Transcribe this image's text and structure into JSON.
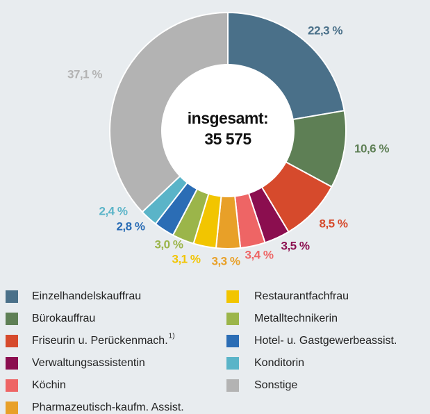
{
  "chart_data": {
    "type": "donut",
    "center_text": [
      "insgesamt:",
      "35 575"
    ],
    "categories": [
      "Einzelhandelskauffrau",
      "Bürokauffrau",
      "Friseurin u. Perückenmach.",
      "Verwaltungsassistentin",
      "Köchin",
      "Pharmazeutisch-kaufm. Assist.",
      "Restaurantfachfrau",
      "Metalltechnikerin",
      "Hotel- u. Gastgewerbeassist.",
      "Konditorin",
      "Sonstige"
    ],
    "footnote": {
      "category": 2,
      "mark": "1)"
    },
    "values": [
      22.3,
      10.6,
      8.5,
      3.5,
      3.4,
      3.3,
      3.1,
      3.0,
      2.8,
      2.4,
      37.1
    ],
    "value_labels": [
      "22,3 %",
      "10,6 %",
      "8,5 %",
      "3,5 %",
      "3,4 %",
      "3,3 %",
      "3,1 %",
      "3,0 %",
      "2,8 %",
      "2,4 %",
      "37,1 %"
    ],
    "colors": [
      "#4a7089",
      "#5e7f55",
      "#d64a2c",
      "#8b0e4f",
      "#ee6565",
      "#e8a028",
      "#f2c500",
      "#9bb54a",
      "#2b6db5",
      "#5ab4c8",
      "#b3b3b3"
    ]
  }
}
